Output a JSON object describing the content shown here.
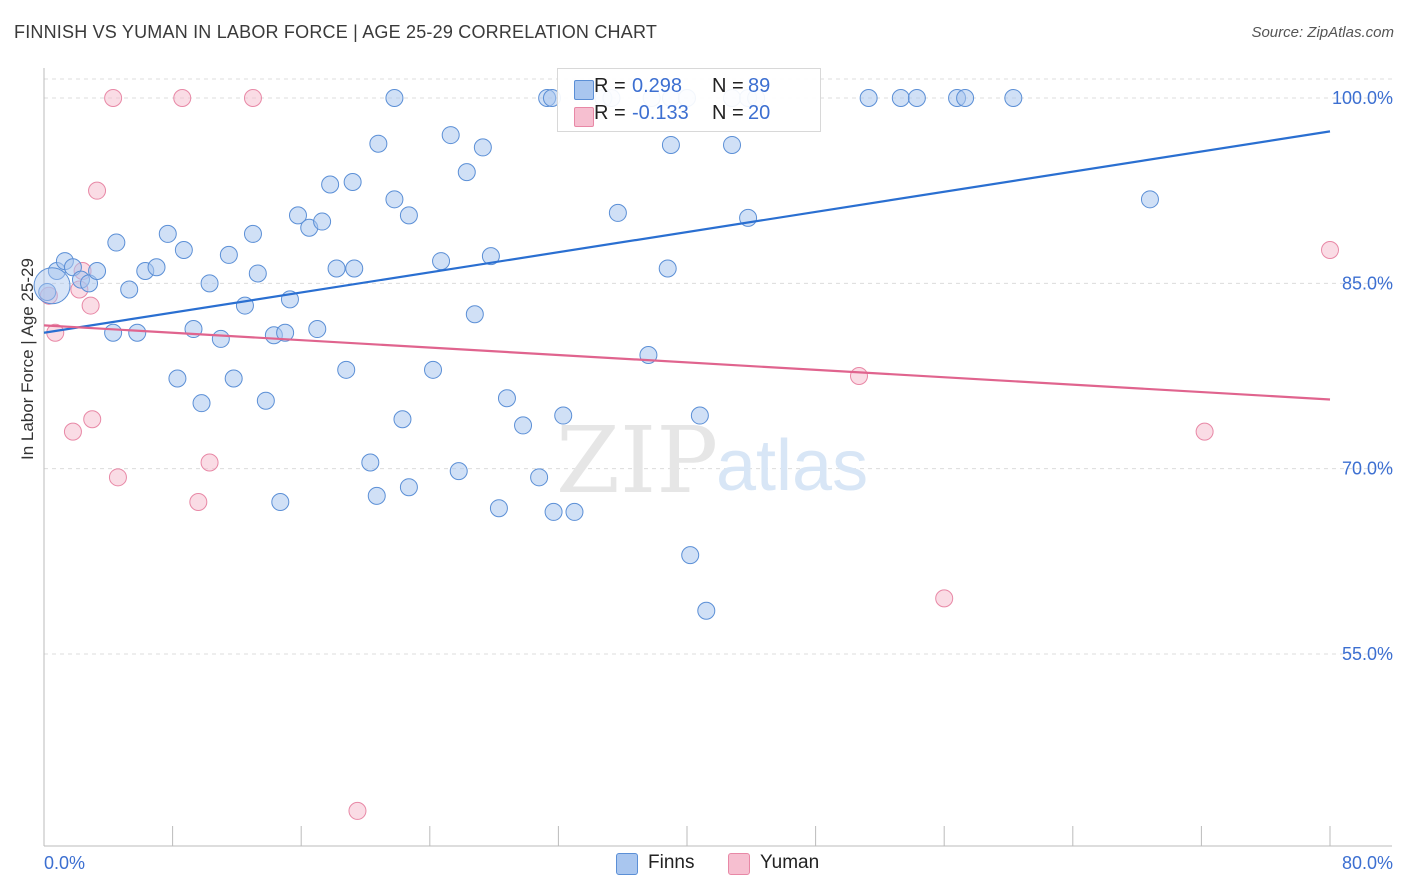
{
  "title": "FINNISH VS YUMAN IN LABOR FORCE | AGE 25-29 CORRELATION CHART",
  "source": "Source: ZipAtlas.com",
  "watermark": {
    "zip": "ZIP",
    "atlas": "atlas"
  },
  "colors": {
    "finns_fill": "#a9c6ef",
    "finns_stroke": "#5b8fd6",
    "finns_line": "#2a6fd1",
    "yuman_fill": "#f6bfd0",
    "yuman_stroke": "#e888a6",
    "yuman_line": "#e0648e",
    "tick_label": "#3c6fd1",
    "grid": "#dcdcdc"
  },
  "legend_top": {
    "rows": [
      {
        "r_label": "R =",
        "r_value": "0.298",
        "n_label": "N =",
        "n_value": "89",
        "color": "#a9c6ef"
      },
      {
        "r_label": "R =",
        "r_value": "-0.133",
        "n_label": "N =",
        "n_value": "20",
        "color": "#f6bfd0"
      }
    ]
  },
  "legend_bottom": [
    {
      "label": "Finns",
      "color": "#a9c6ef"
    },
    {
      "label": "Yuman",
      "color": "#f6bfd0"
    }
  ],
  "chart_data": {
    "type": "scatter",
    "ylabel": "In Labor Force | Age 25-29",
    "xlim": [
      0,
      80
    ],
    "ylim": [
      40,
      102
    ],
    "x_tick_labels": [
      {
        "value": 0,
        "label": "0.0%"
      },
      {
        "value": 80,
        "label": "80.0%"
      }
    ],
    "y_tick_labels": [
      {
        "value": 100,
        "label": "100.0%"
      },
      {
        "value": 85,
        "label": "85.0%"
      },
      {
        "value": 70,
        "label": "70.0%"
      },
      {
        "value": 55,
        "label": "55.0%"
      }
    ],
    "grid": true,
    "series": [
      {
        "name": "Finns",
        "r": 0.298,
        "n": 89,
        "trend": {
          "x": [
            0,
            80
          ],
          "y": [
            81.0,
            97.3
          ]
        },
        "points": [
          [
            0.2,
            84.3
          ],
          [
            0.8,
            86.0
          ],
          [
            1.3,
            86.8
          ],
          [
            1.8,
            86.3
          ],
          [
            2.3,
            85.3
          ],
          [
            2.8,
            85.0
          ],
          [
            3.3,
            86.0
          ],
          [
            4.5,
            88.3
          ],
          [
            5.3,
            84.5
          ],
          [
            6.3,
            86.0
          ],
          [
            7.0,
            86.3
          ],
          [
            7.7,
            89.0
          ],
          [
            8.7,
            87.7
          ],
          [
            10.3,
            85.0
          ],
          [
            11.5,
            87.3
          ],
          [
            12.5,
            83.2
          ],
          [
            13.0,
            89.0
          ],
          [
            13.3,
            85.8
          ],
          [
            14.3,
            80.8
          ],
          [
            15.3,
            83.7
          ],
          [
            15.8,
            90.5
          ],
          [
            16.5,
            89.5
          ],
          [
            17.3,
            90.0
          ],
          [
            17.8,
            93.0
          ],
          [
            18.2,
            86.2
          ],
          [
            19.2,
            93.2
          ],
          [
            19.3,
            86.2
          ],
          [
            20.8,
            96.3
          ],
          [
            21.8,
            91.8
          ],
          [
            22.7,
            90.5
          ],
          [
            24.7,
            86.8
          ],
          [
            25.3,
            97.0
          ],
          [
            26.3,
            94.0
          ],
          [
            26.8,
            82.5
          ],
          [
            27.3,
            96.0
          ],
          [
            27.8,
            87.2
          ],
          [
            4.3,
            81.0
          ],
          [
            5.8,
            81.0
          ],
          [
            9.3,
            81.3
          ],
          [
            11.0,
            80.5
          ],
          [
            15.0,
            81.0
          ],
          [
            17.0,
            81.3
          ],
          [
            18.8,
            78.0
          ],
          [
            24.2,
            78.0
          ],
          [
            8.3,
            77.3
          ],
          [
            9.8,
            75.3
          ],
          [
            11.8,
            77.3
          ],
          [
            13.8,
            75.5
          ],
          [
            22.3,
            74.0
          ],
          [
            28.8,
            75.7
          ],
          [
            29.8,
            73.5
          ],
          [
            32.3,
            74.3
          ],
          [
            20.3,
            70.5
          ],
          [
            25.8,
            69.8
          ],
          [
            14.7,
            67.3
          ],
          [
            20.7,
            67.8
          ],
          [
            22.7,
            68.5
          ],
          [
            28.3,
            66.8
          ],
          [
            30.8,
            69.3
          ],
          [
            31.7,
            66.5
          ],
          [
            33.0,
            66.5
          ],
          [
            40.2,
            63.0
          ],
          [
            41.2,
            58.5
          ],
          [
            40.8,
            74.3
          ],
          [
            37.6,
            79.2
          ],
          [
            38.8,
            86.2
          ],
          [
            35.7,
            90.7
          ],
          [
            43.8,
            90.3
          ],
          [
            39.0,
            96.2
          ],
          [
            42.8,
            96.2
          ],
          [
            68.8,
            91.8
          ],
          [
            21.8,
            100.0
          ],
          [
            31.3,
            100.0
          ],
          [
            31.6,
            100.0
          ],
          [
            34.8,
            100.0
          ],
          [
            35.3,
            100.0
          ],
          [
            37.8,
            100.0
          ],
          [
            39.0,
            100.0
          ],
          [
            40.0,
            100.0
          ],
          [
            42.8,
            100.0
          ],
          [
            43.8,
            100.0
          ],
          [
            44.3,
            100.0
          ],
          [
            51.3,
            100.0
          ],
          [
            53.3,
            100.0
          ],
          [
            54.3,
            100.0
          ],
          [
            56.8,
            100.0
          ],
          [
            57.3,
            100.0
          ],
          [
            60.3,
            100.0
          ]
        ]
      },
      {
        "name": "Yuman",
        "r": -0.133,
        "n": 20,
        "trend": {
          "x": [
            0,
            80
          ],
          "y": [
            81.6,
            75.6
          ]
        },
        "points": [
          [
            0.3,
            84.0
          ],
          [
            0.7,
            81.0
          ],
          [
            1.8,
            73.0
          ],
          [
            2.2,
            84.5
          ],
          [
            2.4,
            86.0
          ],
          [
            2.9,
            83.2
          ],
          [
            3.0,
            74.0
          ],
          [
            3.3,
            92.5
          ],
          [
            4.3,
            100.0
          ],
          [
            4.6,
            69.3
          ],
          [
            8.6,
            100.0
          ],
          [
            9.6,
            67.3
          ],
          [
            10.3,
            70.5
          ],
          [
            13.0,
            100.0
          ],
          [
            19.5,
            42.3
          ],
          [
            50.7,
            77.5
          ],
          [
            56.0,
            59.5
          ],
          [
            72.2,
            73.0
          ],
          [
            80.0,
            87.7
          ]
        ]
      }
    ]
  }
}
